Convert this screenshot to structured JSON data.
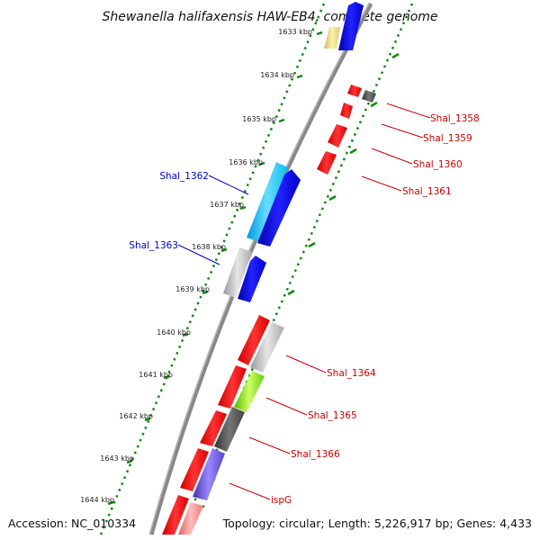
{
  "title": "Shewanella halifaxensis HAW-EB4, complete genome",
  "accession": "Accession: NC_010334",
  "topology": "Topology: circular; Length: 5,226,917 bp; Genes: 4,433",
  "ticks": [
    "1633 kbp",
    "1634 kbp",
    "1635 kbp",
    "1636 kbp",
    "1637 kbp",
    "1638 kbp",
    "1639 kbp",
    "1640 kbp",
    "1641 kbp",
    "1642 kbp",
    "1643 kbp",
    "1644 kbp"
  ],
  "labels": [
    {
      "name": "Shal_1358",
      "side": "right",
      "color": "#cc0000"
    },
    {
      "name": "Shal_1359",
      "side": "right",
      "color": "#cc0000"
    },
    {
      "name": "Shal_1360",
      "side": "right",
      "color": "#cc0000"
    },
    {
      "name": "Shal_1361",
      "side": "right",
      "color": "#cc0000"
    },
    {
      "name": "Shal_1362",
      "side": "left",
      "color": "#0000cc"
    },
    {
      "name": "Shal_1363",
      "side": "left",
      "color": "#0000cc"
    },
    {
      "name": "Shal_1364",
      "side": "right",
      "color": "#cc0000"
    },
    {
      "name": "Shal_1365",
      "side": "right",
      "color": "#cc0000"
    },
    {
      "name": "Shal_1366",
      "side": "right",
      "color": "#cc0000"
    },
    {
      "name": "ispG",
      "side": "right",
      "color": "#cc0000"
    }
  ],
  "colors": {
    "red": "#ff0000",
    "blue": "#0000ee",
    "cyan": "#22c8ff",
    "gray_light": "#c8c8c8",
    "gray_dark": "#555555",
    "yellow": "#eedd88",
    "green": "#88ee22",
    "purple": "#6655dd",
    "pink": "#ff8888",
    "backbone": "#888888",
    "dotted_green": "#118811"
  }
}
